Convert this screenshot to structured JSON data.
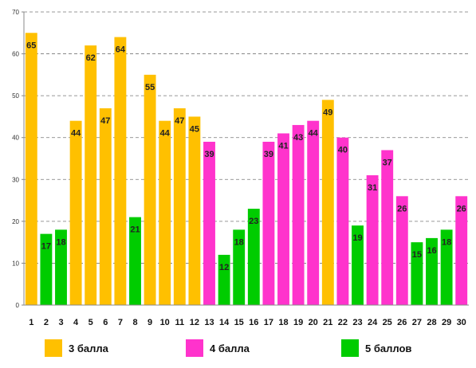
{
  "chart_data": {
    "type": "bar",
    "categories": [
      "1",
      "2",
      "3",
      "4",
      "5",
      "6",
      "7",
      "8",
      "9",
      "10",
      "11",
      "12",
      "13",
      "14",
      "15",
      "16",
      "17",
      "18",
      "19",
      "20",
      "21",
      "22",
      "23",
      "24",
      "25",
      "26",
      "27",
      "28",
      "29",
      "30"
    ],
    "values": [
      65,
      17,
      18,
      44,
      62,
      47,
      64,
      21,
      55,
      44,
      47,
      45,
      39,
      12,
      18,
      23,
      39,
      41,
      43,
      44,
      49,
      40,
      19,
      31,
      37,
      26,
      15,
      16,
      18,
      26
    ],
    "groups": [
      "3",
      "5",
      "5",
      "3",
      "3",
      "3",
      "3",
      "5",
      "3",
      "3",
      "3",
      "3",
      "4",
      "5",
      "5",
      "5",
      "4",
      "4",
      "4",
      "4",
      "3",
      "4",
      "5",
      "4",
      "4",
      "4",
      "5",
      "5",
      "5",
      "4"
    ],
    "ylim": [
      0,
      70
    ],
    "yticks": [
      0,
      10,
      20,
      30,
      40,
      50,
      60,
      70
    ],
    "grid": true,
    "legend": [
      {
        "key": "3",
        "label": "3 балла",
        "color": "#FFC000"
      },
      {
        "key": "4",
        "label": "4 балла",
        "color": "#FF33CC"
      },
      {
        "key": "5",
        "label": "5 баллов",
        "color": "#00CC00"
      }
    ],
    "legend_position": "bottom"
  }
}
